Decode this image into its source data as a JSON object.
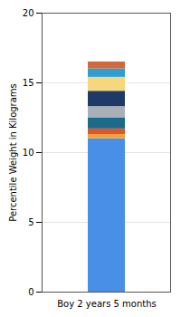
{
  "chart_data": {
    "type": "bar",
    "stacked": true,
    "grid": true,
    "ylabel": "Percentile Weight in Kilograms",
    "categories": [
      "Boy 2 years 5 months"
    ],
    "series": [
      {
        "color": "#4a8fe7",
        "values": [
          11.0
        ]
      },
      {
        "color": "#f2a13a",
        "values": [
          0.3
        ]
      },
      {
        "color": "#e0542a",
        "values": [
          0.4
        ]
      },
      {
        "color": "#1c6b8a",
        "values": [
          0.8
        ]
      },
      {
        "color": "#aab0b8",
        "values": [
          0.8
        ]
      },
      {
        "color": "#1f3a66",
        "values": [
          1.1
        ]
      },
      {
        "color": "#f6d77c",
        "values": [
          1.0
        ]
      },
      {
        "color": "#2e9fd0",
        "values": [
          0.6
        ]
      },
      {
        "color": "#d06a3e",
        "values": [
          0.5
        ]
      }
    ],
    "ylim": [
      0,
      20
    ],
    "yticks": [
      0,
      5,
      10,
      15,
      20
    ]
  }
}
